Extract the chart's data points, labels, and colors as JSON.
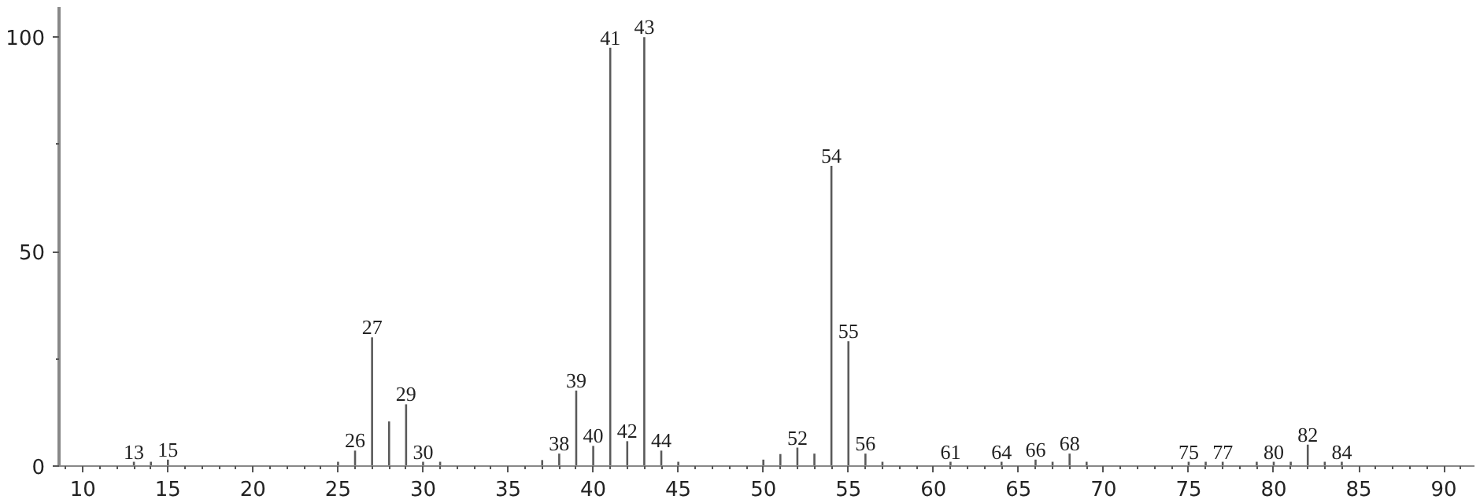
{
  "chart_data": {
    "type": "bar",
    "color": "#5a5a5a",
    "x": [
      13,
      14,
      15,
      25,
      26,
      27,
      28,
      29,
      30,
      31,
      37,
      38,
      39,
      40,
      41,
      42,
      43,
      44,
      45,
      50,
      51,
      52,
      53,
      54,
      55,
      56,
      57,
      61,
      64,
      66,
      67,
      68,
      69,
      75,
      76,
      77,
      79,
      80,
      81,
      82,
      83,
      84
    ],
    "values": [
      1,
      1,
      1.5,
      1,
      3.6,
      30,
      10.4,
      14.4,
      1,
      1,
      1.4,
      2.9,
      17.6,
      4.7,
      97.5,
      5.8,
      100,
      3.6,
      1,
      1.5,
      2.8,
      4.3,
      2.9,
      70,
      29.1,
      2.9,
      1,
      1,
      1,
      1.5,
      1,
      2.9,
      1,
      1,
      1,
      1,
      1,
      1,
      1,
      5,
      1,
      1
    ],
    "xlim": [
      8.6,
      91.8
    ],
    "xticks": [
      10,
      15,
      20,
      25,
      30,
      35,
      40,
      45,
      50,
      55,
      60,
      65,
      70,
      75,
      80,
      85,
      90
    ],
    "ylim": [
      0,
      107
    ],
    "yticks": [
      0,
      50,
      100
    ],
    "grid": false,
    "annotations": [
      {
        "text": "13",
        "x": 13,
        "y": 1
      },
      {
        "text": "15",
        "x": 15,
        "y": 1.5
      },
      {
        "text": "26",
        "x": 26,
        "y": 3.6
      },
      {
        "text": "27",
        "x": 27,
        "y": 30
      },
      {
        "text": "29",
        "x": 29,
        "y": 14.4
      },
      {
        "text": "30",
        "x": 30,
        "y": 1
      },
      {
        "text": "38",
        "x": 38,
        "y": 2.9
      },
      {
        "text": "39",
        "x": 39,
        "y": 17.6
      },
      {
        "text": "40",
        "x": 40,
        "y": 4.7
      },
      {
        "text": "41",
        "x": 41,
        "y": 97.5
      },
      {
        "text": "42",
        "x": 42,
        "y": 5.8
      },
      {
        "text": "43",
        "x": 43,
        "y": 100
      },
      {
        "text": "44",
        "x": 44,
        "y": 3.6
      },
      {
        "text": "52",
        "x": 52,
        "y": 4.3
      },
      {
        "text": "54",
        "x": 54,
        "y": 70
      },
      {
        "text": "55",
        "x": 55,
        "y": 29.1
      },
      {
        "text": "56",
        "x": 56,
        "y": 2.9
      },
      {
        "text": "61",
        "x": 61,
        "y": 1
      },
      {
        "text": "64",
        "x": 64,
        "y": 1
      },
      {
        "text": "66",
        "x": 66,
        "y": 1.5
      },
      {
        "text": "68",
        "x": 68,
        "y": 2.9
      },
      {
        "text": "75",
        "x": 75,
        "y": 1
      },
      {
        "text": "77",
        "x": 77,
        "y": 1
      },
      {
        "text": "80",
        "x": 80,
        "y": 1
      },
      {
        "text": "82",
        "x": 82,
        "y": 5
      },
      {
        "text": "84",
        "x": 84,
        "y": 1
      }
    ]
  }
}
